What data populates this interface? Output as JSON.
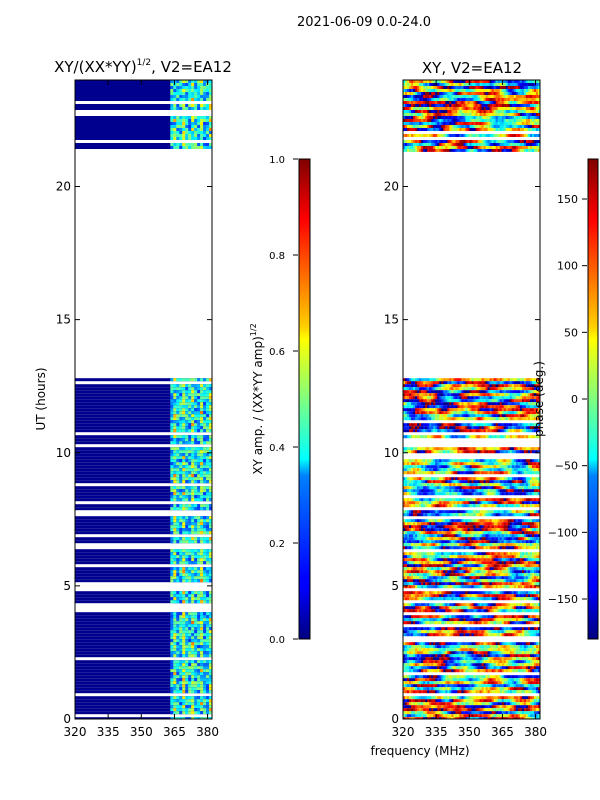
{
  "figure": {
    "suptitle": "2021-06-09 0.0-24.0",
    "xlabel_shared": "frequency (MHz)"
  },
  "chart_data": [
    {
      "type": "heatmap",
      "title": "XY/(XX*YY)",
      "title_sup": "1/2",
      "title_suffix": ", V2=EA12",
      "ylabel": "UT (hours)",
      "xlim": [
        320,
        382
      ],
      "ylim": [
        0,
        24
      ],
      "xticks": [
        320,
        335,
        350,
        365,
        380
      ],
      "yticks": [
        0,
        5,
        10,
        15,
        20
      ],
      "data_blocks_ut": [
        [
          0.0,
          12.8
        ],
        [
          21.3,
          24.0
        ]
      ],
      "colorbar": {
        "label": "XY amp. / (XX*YY amp)",
        "label_sup": "1/2",
        "range": [
          0.0,
          1.0
        ],
        "ticks": [
          "0.0",
          "0.2",
          "0.4",
          "0.6",
          "0.8",
          "1.0"
        ],
        "tick_values": [
          0.0,
          0.2,
          0.4,
          0.6,
          0.8,
          1.0
        ]
      }
    },
    {
      "type": "heatmap",
      "title": "XY, V2=EA12",
      "xlim": [
        320,
        382
      ],
      "ylim": [
        0,
        24
      ],
      "xticks": [
        320,
        335,
        350,
        365,
        380
      ],
      "yticks": [
        0,
        5,
        10,
        15,
        20
      ],
      "data_blocks_ut": [
        [
          0.0,
          12.8
        ],
        [
          21.3,
          24.0
        ]
      ],
      "colorbar": {
        "label": "phase (deg.)",
        "range": [
          -180,
          180
        ],
        "ticks": [
          "−150",
          "−100",
          "−50",
          "0",
          "50",
          "100",
          "150"
        ],
        "tick_values": [
          -150,
          -100,
          -50,
          0,
          50,
          100,
          150
        ]
      }
    }
  ]
}
